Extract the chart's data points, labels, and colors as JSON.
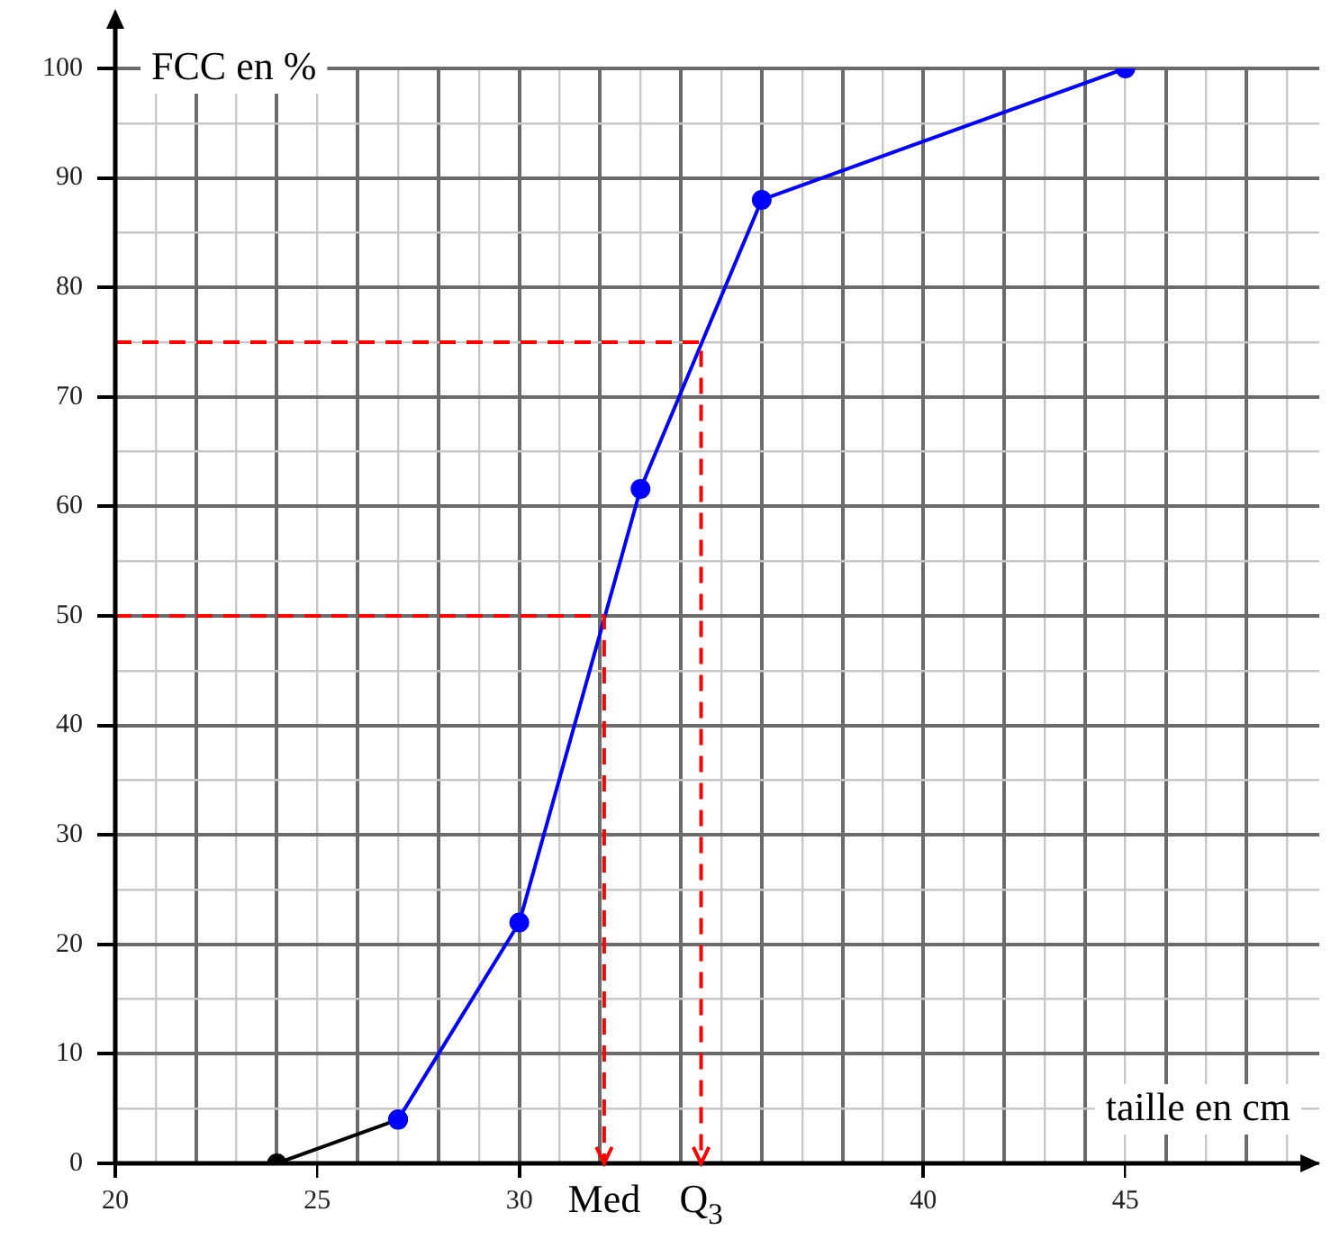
{
  "chart_data": {
    "type": "line",
    "xlabel": "taille en cm",
    "ylabel": "FCC en %",
    "xlim": [
      20,
      49.8
    ],
    "ylim": [
      0,
      100
    ],
    "xticks": [
      20,
      {
        "value": 21,
        "label": null
      },
      {
        "value": 22,
        "label": null
      },
      {
        "value": 23,
        "label": null
      },
      {
        "value": 24,
        "label": null
      },
      25,
      {
        "value": 26,
        "label": null
      },
      {
        "value": 27,
        "label": null
      },
      {
        "value": 28,
        "label": null
      },
      {
        "value": 29,
        "label": null
      },
      30,
      {
        "value": 31,
        "label": null
      },
      {
        "value": 32,
        "label": null
      },
      {
        "value": 33,
        "label": null
      },
      {
        "value": 34,
        "label": null
      },
      {
        "value": 35,
        "label": null
      },
      {
        "value": 36,
        "label": null
      },
      {
        "value": 37,
        "label": null
      },
      {
        "value": 38,
        "label": null
      },
      {
        "value": 39,
        "label": null
      },
      40,
      {
        "value": 41,
        "label": null
      },
      {
        "value": 42,
        "label": null
      },
      {
        "value": 43,
        "label": null
      },
      {
        "value": 44,
        "label": null
      },
      45,
      {
        "value": 46,
        "label": null
      },
      {
        "value": 47,
        "label": null
      },
      {
        "value": 48,
        "label": null
      },
      {
        "value": 49,
        "label": null
      }
    ],
    "yticks": [
      0,
      {
        "value": 5,
        "label": null
      },
      10,
      {
        "value": 15,
        "label": null
      },
      20,
      {
        "value": 25,
        "label": null
      },
      30,
      {
        "value": 35,
        "label": null
      },
      40,
      {
        "value": 45,
        "label": null
      },
      50,
      {
        "value": 55,
        "label": null
      },
      60,
      {
        "value": 65,
        "label": null
      },
      70,
      {
        "value": 75,
        "label": null
      },
      80,
      {
        "value": 85,
        "label": null
      },
      90,
      {
        "value": 95,
        "label": null
      },
      100
    ],
    "grid": true,
    "legend": false,
    "marker": "circle",
    "series": [
      {
        "color": "#000000",
        "x": [
          24,
          27
        ],
        "values": [
          0,
          4
        ]
      },
      {
        "color": "#0000ff",
        "x": [
          27,
          30,
          33,
          36,
          45
        ],
        "values": [
          4,
          22,
          61.6,
          88,
          100
        ]
      },
      {
        "color": "#ff0000",
        "x": [
          20,
          32.1,
          32.1
        ],
        "values": [
          50,
          50,
          0
        ],
        "marker": "none",
        "line_style": "dashed"
      },
      {
        "color": "#ff0000",
        "x": [
          20,
          34.5,
          34.5
        ],
        "values": [
          75,
          75,
          0
        ],
        "marker": "none",
        "line_style": "dashed"
      }
    ],
    "annotations": [
      {
        "text": "Med",
        "x": 32.1,
        "y": 0
      },
      {
        "text": "Q$_{3}$",
        "x": 34.5,
        "y": 0
      }
    ]
  }
}
